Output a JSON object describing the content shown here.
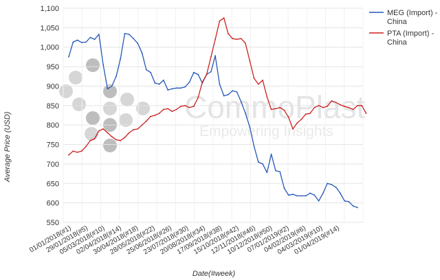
{
  "chart_data": {
    "type": "line",
    "xlabel": "Date(#week)",
    "ylabel": "Average Price (USD)",
    "ylim": [
      550,
      1100
    ],
    "yticks": [
      "1,100",
      "1,050",
      "1,000",
      "950",
      "900",
      "850",
      "800",
      "750",
      "700",
      "650",
      "600",
      "550"
    ],
    "xtick_labels": [
      "01/01/2018(#1)",
      "29/01/2018(#5)",
      "05/03/2018(#10)",
      "02/04/2018(#14)",
      "30/04/2018(#18)",
      "28/05/2018(#22)",
      "25/06/2018(#26)",
      "23/07/2018(#30)",
      "20/08/2018(#34)",
      "17/09/2018(#38)",
      "15/10/2018(#42)",
      "12/11/2018(#46)",
      "10/12/2018(#50)",
      "07/01/2019(#2)",
      "04/02/2019(#6)",
      "04/03/2019(#10)",
      "01/04/2019(#14)"
    ],
    "grid": true,
    "legend_position": "right",
    "series": [
      {
        "name": "MEG (Import) - China",
        "color": "#2457b8",
        "values": [
          975,
          1013,
          1018,
          1012,
          1013,
          1025,
          1020,
          1033,
          955,
          893,
          900,
          925,
          970,
          1035,
          1033,
          1022,
          1010,
          985,
          942,
          935,
          908,
          905,
          915,
          890,
          893,
          895,
          895,
          898,
          910,
          935,
          930,
          908,
          930,
          937,
          978,
          905,
          875,
          878,
          888,
          885,
          860,
          830,
          795,
          745,
          705,
          700,
          678,
          725,
          683,
          680,
          638,
          620,
          622,
          618,
          618,
          618,
          625,
          620,
          605,
          625,
          650,
          647,
          640,
          625,
          605,
          603,
          592,
          588
        ]
      },
      {
        "name": "PTA (Import) - China",
        "color": "#cc1f1f",
        "values": [
          723,
          733,
          730,
          733,
          745,
          760,
          765,
          785,
          790,
          780,
          770,
          762,
          760,
          768,
          780,
          788,
          790,
          800,
          810,
          822,
          825,
          830,
          840,
          842,
          835,
          840,
          848,
          850,
          845,
          848,
          870,
          910,
          930,
          975,
          1020,
          1067,
          1075,
          1035,
          1022,
          1020,
          1022,
          1010,
          965,
          920,
          905,
          915,
          872,
          840,
          842,
          845,
          838,
          820,
          790,
          805,
          815,
          828,
          830,
          845,
          850,
          845,
          848,
          862,
          858,
          852,
          848,
          845,
          840,
          850,
          850,
          830
        ]
      }
    ]
  },
  "watermark": {
    "brand": "CommoPlast",
    "tagline": "Empowering Insights"
  }
}
